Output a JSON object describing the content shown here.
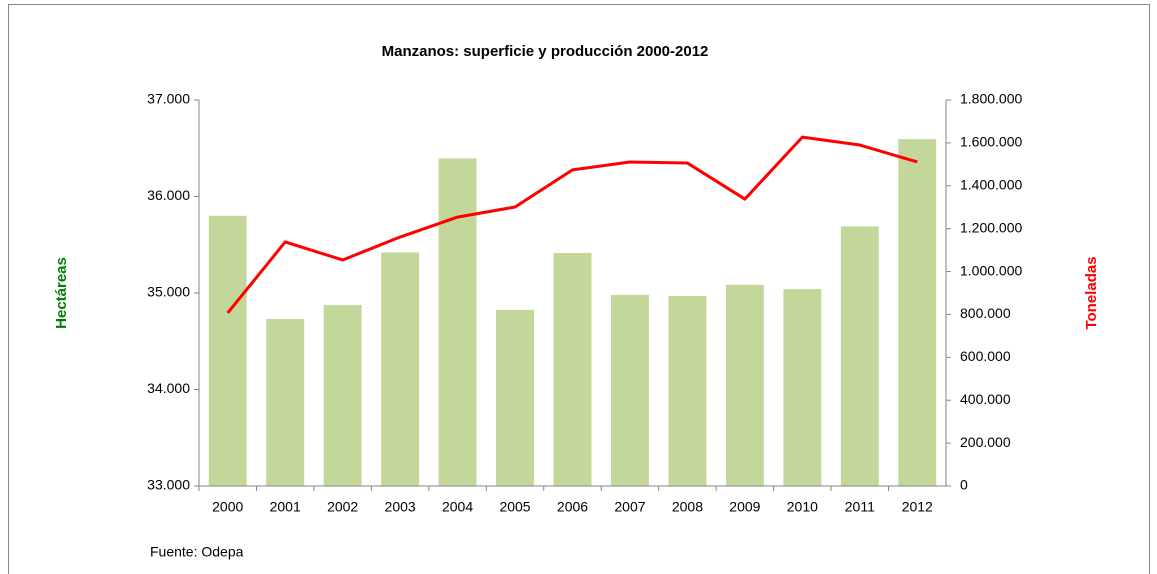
{
  "chart_data": {
    "type": "bar_line",
    "title": "Manzanos: superficie y producción 2000-2012",
    "y_label": "Hectáreas",
    "y2_label": "Toneladas",
    "source": "Fuente: Odepa",
    "categories": [
      "2000",
      "2001",
      "2002",
      "2003",
      "2004",
      "2005",
      "2006",
      "2007",
      "2008",
      "2009",
      "2010",
      "2011",
      "2012"
    ],
    "series": [
      {
        "type": "bar",
        "color": "#c4d79b",
        "axis": "y",
        "values": [
          35800,
          34730,
          34875,
          35420,
          36395,
          34825,
          35415,
          34980,
          34970,
          35085,
          35040,
          35690,
          36595
        ]
      },
      {
        "type": "line",
        "color": "#ff0000",
        "axis": "y2",
        "values": [
          807000,
          1138000,
          1054000,
          1161000,
          1254000,
          1301000,
          1474000,
          1511000,
          1506000,
          1338000,
          1627000,
          1590000,
          1511000
        ]
      }
    ],
    "ylim": [
      33000,
      37000
    ],
    "yticks": [
      {
        "value": 33000,
        "label": "33.000"
      },
      {
        "value": 34000,
        "label": "34.000"
      },
      {
        "value": 35000,
        "label": "35.000"
      },
      {
        "value": 36000,
        "label": "36.000"
      },
      {
        "value": 37000,
        "label": "37.000"
      }
    ],
    "y2lim": [
      0,
      1800000
    ],
    "y2ticks": [
      0,
      {
        "value": 200000,
        "label": "200.000"
      },
      {
        "value": 400000,
        "label": "400.000"
      },
      {
        "value": 600000,
        "label": "600.000"
      },
      {
        "value": 800000,
        "label": "800.000"
      },
      {
        "value": 1000000,
        "label": "1.000.000"
      },
      {
        "value": 1200000,
        "label": "1.200.000"
      },
      {
        "value": 1400000,
        "label": "1.400.000"
      },
      {
        "value": 1600000,
        "label": "1.600.000"
      },
      {
        "value": 1800000,
        "label": "1.800.000"
      }
    ],
    "y_label_color": "#008000",
    "y2_label_color": "#ff0000"
  }
}
